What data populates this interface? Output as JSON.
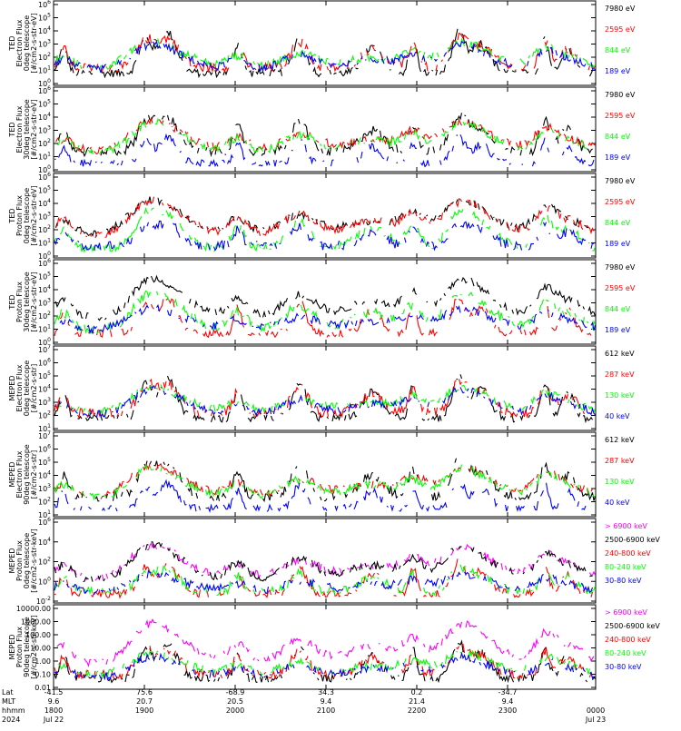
{
  "colors": {
    "black": "#000000",
    "red": "#ff0000",
    "green": "#00ff00",
    "blue": "#0000ff",
    "magenta": "#ff00ff"
  },
  "chart_data": [
    {
      "type": "line",
      "scale": "log",
      "ylim": [
        1,
        1000000
      ],
      "ylabel": [
        "TED",
        "Electron Flux",
        "0deg telescope",
        "[#/cm2-s-str-eV]"
      ],
      "yticks": [
        "10^0",
        "10^1",
        "10^2",
        "10^3",
        "10^4",
        "10^5",
        "10^6"
      ],
      "series": [
        {
          "name": "7980 eV",
          "color": "#000000"
        },
        {
          "name": "2595 eV",
          "color": "#ff0000"
        },
        {
          "name": "844 eV",
          "color": "#00ff00"
        },
        {
          "name": "189 eV",
          "color": "#0000ff"
        }
      ]
    },
    {
      "type": "line",
      "scale": "log",
      "ylim": [
        1,
        1000000
      ],
      "ylabel": [
        "TED",
        "Electron Flux",
        "30deg telescope",
        "[#/cm2-s-str-eV]"
      ],
      "yticks": [
        "10^0",
        "10^1",
        "10^2",
        "10^3",
        "10^4",
        "10^5",
        "10^6"
      ],
      "series": [
        {
          "name": "7980 eV",
          "color": "#000000"
        },
        {
          "name": "2595 eV",
          "color": "#ff0000"
        },
        {
          "name": "844 eV",
          "color": "#00ff00"
        },
        {
          "name": "189 eV",
          "color": "#0000ff"
        }
      ]
    },
    {
      "type": "line",
      "scale": "log",
      "ylim": [
        1,
        1000000
      ],
      "ylabel": [
        "TED",
        "Proton Flux",
        "0deg telescope",
        "[#/cm2-s-str-eV]"
      ],
      "yticks": [
        "10^0",
        "10^1",
        "10^2",
        "10^3",
        "10^4",
        "10^5",
        "10^6"
      ],
      "series": [
        {
          "name": "7980 eV",
          "color": "#000000"
        },
        {
          "name": "2595 eV",
          "color": "#ff0000"
        },
        {
          "name": "844 eV",
          "color": "#00ff00"
        },
        {
          "name": "189 eV",
          "color": "#0000ff"
        }
      ]
    },
    {
      "type": "line",
      "scale": "log",
      "ylim": [
        1,
        1000000
      ],
      "ylabel": [
        "TED",
        "Proton Flux",
        "30deg telescope",
        "[#/cm2-s-str-eV]"
      ],
      "yticks": [
        "10^0",
        "10^1",
        "10^2",
        "10^3",
        "10^4",
        "10^5",
        "10^6"
      ],
      "series": [
        {
          "name": "7980 eV",
          "color": "#000000"
        },
        {
          "name": "2595 eV",
          "color": "#ff0000"
        },
        {
          "name": "844 eV",
          "color": "#00ff00"
        },
        {
          "name": "189 eV",
          "color": "#0000ff"
        }
      ]
    },
    {
      "type": "line",
      "scale": "log",
      "ylim": [
        10,
        10000000
      ],
      "ylabel": [
        "MEPED",
        "Electron Flux",
        "0deg telescope",
        "[#/cm2-s-str]"
      ],
      "yticks": [
        "10^1",
        "10^2",
        "10^3",
        "10^4",
        "10^5",
        "10^6",
        "10^7"
      ],
      "series": [
        {
          "name": "612 keV",
          "color": "#000000"
        },
        {
          "name": "287 keV",
          "color": "#ff0000"
        },
        {
          "name": "130 keV",
          "color": "#00ff00"
        },
        {
          "name": "40 keV",
          "color": "#0000ff"
        }
      ]
    },
    {
      "type": "line",
      "scale": "log",
      "ylim": [
        10,
        10000000
      ],
      "ylabel": [
        "MEPED",
        "Electron Flux",
        "90deg telescope",
        "[#/cm2-s-str]"
      ],
      "yticks": [
        "10^1",
        "10^2",
        "10^3",
        "10^4",
        "10^5",
        "10^6",
        "10^7"
      ],
      "series": [
        {
          "name": "612 keV",
          "color": "#000000"
        },
        {
          "name": "287 keV",
          "color": "#ff0000"
        },
        {
          "name": "130 keV",
          "color": "#00ff00"
        },
        {
          "name": "40 keV",
          "color": "#0000ff"
        }
      ]
    },
    {
      "type": "line",
      "scale": "log",
      "ylim": [
        0.001,
        1000000
      ],
      "ylabel": [
        "MEPED",
        "Proton Flux",
        "0deg telescope",
        "[#/cm2-s-str-keV]"
      ],
      "yticks": [
        "10^-2",
        "10^0",
        "10^2",
        "10^4",
        "10^6"
      ],
      "series": [
        {
          "name": "> 6900 keV",
          "color": "#ff00ff"
        },
        {
          "name": "2500-6900 keV",
          "color": "#000000"
        },
        {
          "name": "240-800 keV",
          "color": "#ff0000"
        },
        {
          "name": "80-240 keV",
          "color": "#00ff00"
        },
        {
          "name": "30-80 keV",
          "color": "#0000ff"
        }
      ]
    },
    {
      "type": "line",
      "scale": "log",
      "ylim": [
        0.01,
        10000
      ],
      "ylabel": [
        "MEPED",
        "Proton Flux",
        "90deg telescope",
        "[#/cm2-s-str-keV]"
      ],
      "yticks": [
        "0.01",
        "0.10",
        "1.00",
        "10.00",
        "100.00",
        "1000.00",
        "10000.00"
      ],
      "series": [
        {
          "name": "> 6900 keV",
          "color": "#ff00ff"
        },
        {
          "name": "2500-6900 keV",
          "color": "#000000"
        },
        {
          "name": "240-800 keV",
          "color": "#ff0000"
        },
        {
          "name": "80-240 keV",
          "color": "#00ff00"
        },
        {
          "name": "30-80 keV",
          "color": "#0000ff"
        }
      ]
    }
  ],
  "time_axis": {
    "row_labels": [
      "Lat",
      "MLT",
      "hhmm",
      "2024"
    ],
    "columns": [
      {
        "lat": "-41.5",
        "mlt": "9.6",
        "hhmm": "1800",
        "date": "Jul 22"
      },
      {
        "lat": "75.6",
        "mlt": "20.7",
        "hhmm": "1900",
        "date": ""
      },
      {
        "lat": "-68.9",
        "mlt": "20.5",
        "hhmm": "2000",
        "date": ""
      },
      {
        "lat": "34.3",
        "mlt": "9.4",
        "hhmm": "2100",
        "date": ""
      },
      {
        "lat": "0.2",
        "mlt": "21.4",
        "hhmm": "2200",
        "date": ""
      },
      {
        "lat": "-34.7",
        "mlt": "9.4",
        "hhmm": "2300",
        "date": ""
      },
      {
        "lat": "",
        "mlt": "",
        "hhmm": "0000",
        "date": "Jul 23"
      }
    ]
  }
}
